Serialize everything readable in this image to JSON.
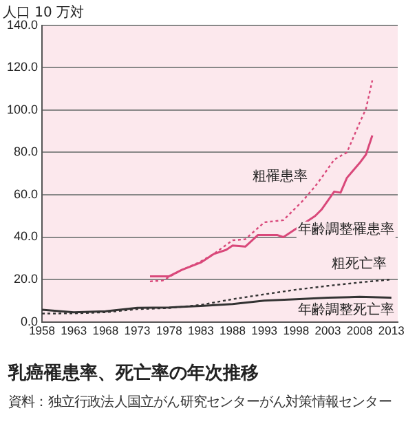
{
  "chart_data": {
    "type": "line",
    "title": "乳癌罹患率、死亡率の年次推移",
    "ylabel": "人口 10 万対",
    "annotations": [
      "資料：独立行政法人国立がん研究センターがん対策情報センター"
    ],
    "xlim": [
      1958,
      2014
    ],
    "xticks": [
      1958,
      1963,
      1968,
      1973,
      1978,
      1983,
      1988,
      1993,
      1998,
      2003,
      2008,
      2013
    ],
    "ylim": [
      0,
      140
    ],
    "yticks": [
      {
        "value": 0,
        "label": "0.0"
      },
      {
        "value": 20,
        "label": "20.0"
      },
      {
        "value": 40,
        "label": "40.0"
      },
      {
        "value": 60,
        "label": "60.0"
      },
      {
        "value": 80,
        "label": "80.0"
      },
      {
        "value": 100,
        "label": "100.0"
      },
      {
        "value": 120,
        "label": "120.0"
      },
      {
        "value": 140,
        "label": "140.0"
      }
    ],
    "grid": "y",
    "legend": false,
    "marker": "none",
    "series": [
      {
        "name": "粗罹患率",
        "color": "#d9487a",
        "line_style": "dotted",
        "x": [
          1975,
          1977,
          1980,
          1983,
          1985,
          1988,
          1990,
          1993,
          1996,
          1999,
          2001,
          2002,
          2004,
          2006,
          2008,
          2009,
          2010
        ],
        "values": [
          19.1,
          19.5,
          24.5,
          28.5,
          32,
          38.5,
          39,
          47,
          48,
          57,
          64,
          68,
          76.6,
          80,
          94,
          100.6,
          114
        ]
      },
      {
        "name": "年齢調整罹患率",
        "color": "#d9487a",
        "line_style": "solid",
        "x": [
          1975,
          1978,
          1980,
          1983,
          1985,
          1987,
          1988,
          1990,
          1992,
          1995,
          1996,
          1998,
          2001,
          2002,
          2004,
          2005,
          2006,
          2008,
          2009,
          2010
        ],
        "values": [
          21.5,
          21.5,
          24.5,
          28,
          32,
          34,
          36,
          35.5,
          41,
          41,
          40,
          44,
          50,
          53,
          61.5,
          61,
          68,
          75,
          79,
          88
        ]
      },
      {
        "name": "粗死亡率",
        "color": "#333333",
        "line_style": "dotted",
        "x": [
          1958,
          1963,
          1968,
          1973,
          1978,
          1983,
          1988,
          1993,
          1998,
          2003,
          2008,
          2013
        ],
        "values": [
          3.9,
          4,
          4.5,
          6,
          6.5,
          8,
          10.7,
          13,
          15.2,
          17,
          18.6,
          20
        ]
      },
      {
        "name": "年齢調整死亡率",
        "color": "#333333",
        "line_style": "solid",
        "x": [
          1958,
          1963,
          1968,
          1973,
          1978,
          1983,
          1988,
          1993,
          1998,
          2003,
          2008,
          2013
        ],
        "values": [
          5.7,
          4.5,
          5,
          6.6,
          6.8,
          7.5,
          8.4,
          10,
          10.7,
          11.4,
          11.8,
          11.4
        ]
      }
    ]
  }
}
